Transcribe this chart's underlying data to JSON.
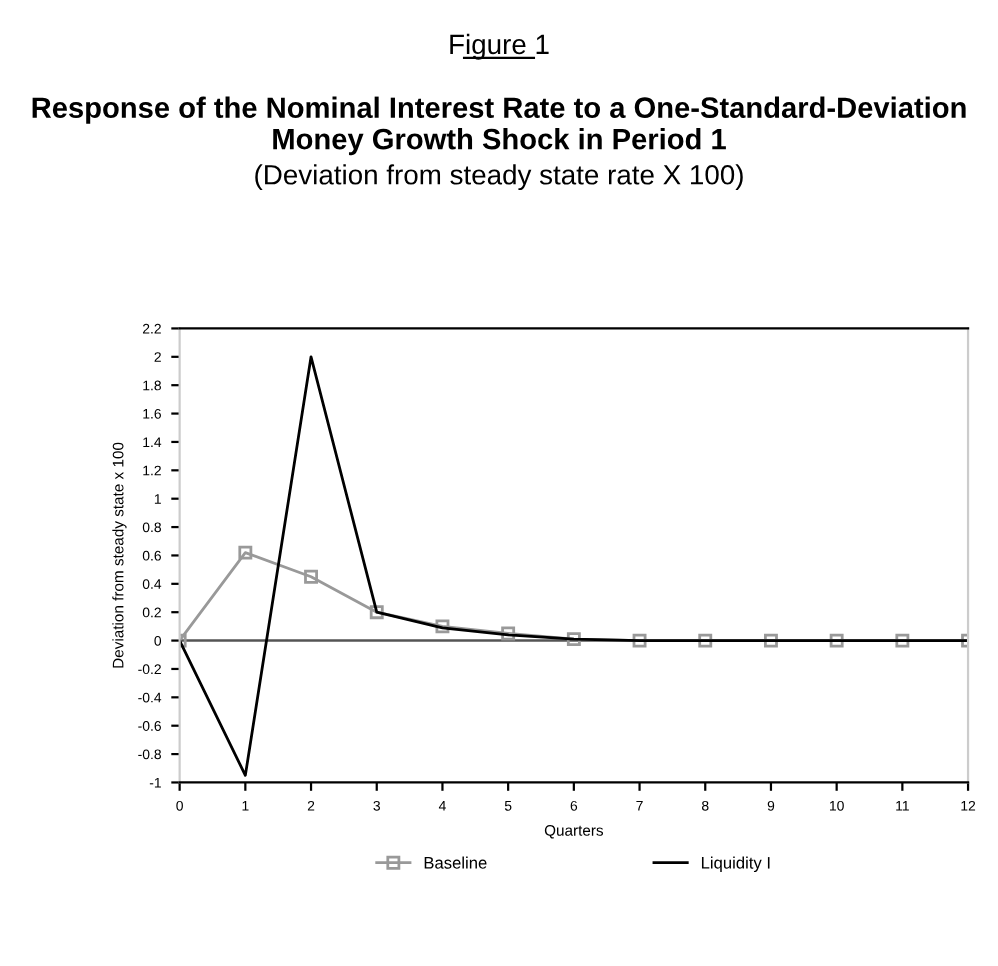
{
  "chart_data": {
    "type": "line",
    "annotations": [
      "Figure 1"
    ],
    "title": "Response of the Nominal Interest Rate to a One-Standard-Deviation Money Growth Shock in Period 1",
    "subtitle": "(Deviation from steady state rate X 100)",
    "xlabel": "Quarters",
    "ylabel": "Deviation from steady state x 100",
    "x": [
      0,
      1,
      2,
      3,
      4,
      5,
      6,
      7,
      8,
      9,
      10,
      11,
      12
    ],
    "series": [
      {
        "name": "Baseline",
        "color": "#999999",
        "marker": "square",
        "values": [
          0,
          0.62,
          0.45,
          0.2,
          0.1,
          0.05,
          0.01,
          0,
          0,
          0,
          0,
          0,
          0
        ]
      },
      {
        "name": "Liquidity I",
        "color": "#000000",
        "marker": "none",
        "values": [
          0,
          -0.95,
          2.0,
          0.2,
          0.09,
          0.04,
          0.01,
          0,
          0,
          0,
          0,
          0,
          0
        ]
      }
    ],
    "xlim": [
      0,
      12
    ],
    "xticks": [
      0,
      1,
      2,
      3,
      4,
      5,
      6,
      7,
      8,
      9,
      10,
      11,
      12
    ],
    "ylim": [
      -1,
      2.2
    ],
    "yticks": [
      -1,
      -0.8,
      -0.6,
      -0.4,
      -0.2,
      0,
      0.2,
      0.4,
      0.6,
      0.8,
      1,
      1.2,
      1.4,
      1.6,
      1.8,
      2,
      2.2
    ],
    "ref_lines": [
      {
        "axis": "y",
        "value": 0,
        "color": "#555555"
      }
    ],
    "grid": false,
    "legend": "bottom"
  }
}
